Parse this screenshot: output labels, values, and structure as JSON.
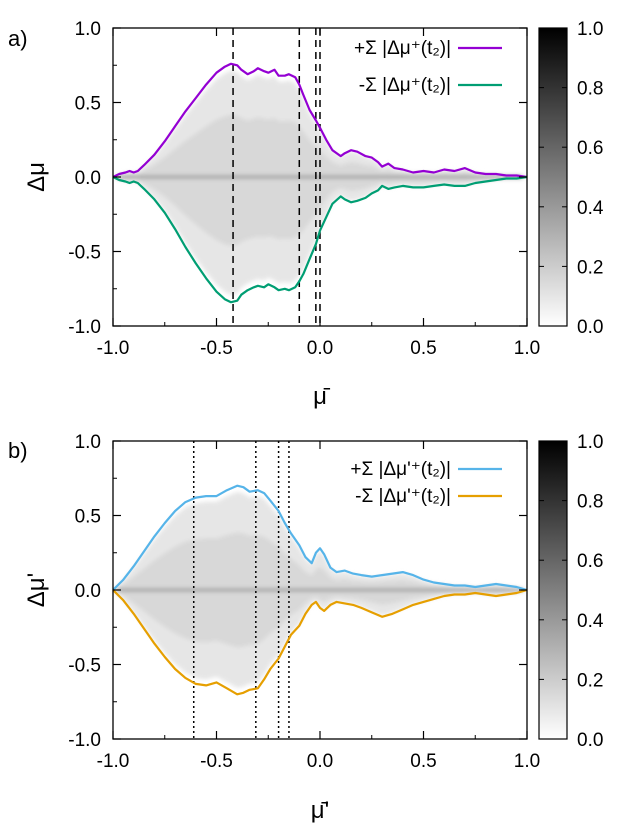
{
  "chart_data": [
    {
      "type": "heatmap",
      "panel_label": "a)",
      "xlabel": "μ̄",
      "ylabel": "Δμ",
      "xlim": [
        -1.0,
        1.0
      ],
      "ylim": [
        -1.0,
        1.0
      ],
      "xticks": [
        "-1.0",
        "-0.5",
        "0.0",
        "0.5",
        "1.0"
      ],
      "yticks": [
        "-1.0",
        "-0.5",
        "0.0",
        "0.5",
        "1.0"
      ],
      "colorbar": {
        "range": [
          0.0,
          1.0
        ],
        "ticks": [
          "0.0",
          "0.2",
          "0.4",
          "0.6",
          "0.8",
          "1.0"
        ],
        "colormap": "white-to-black"
      },
      "legend_position": "top-right",
      "vlines": {
        "style": "dashed",
        "x": [
          -0.42,
          -0.1,
          -0.02,
          0.0
        ]
      },
      "series": [
        {
          "name": "+Σ |Δμ⁺(t₂)|",
          "color": "#9400d3",
          "x": [
            -1.0,
            -0.97,
            -0.94,
            -0.92,
            -0.9,
            -0.88,
            -0.85,
            -0.8,
            -0.75,
            -0.7,
            -0.65,
            -0.6,
            -0.55,
            -0.5,
            -0.46,
            -0.43,
            -0.4,
            -0.38,
            -0.35,
            -0.32,
            -0.3,
            -0.27,
            -0.25,
            -0.22,
            -0.2,
            -0.17,
            -0.15,
            -0.12,
            -0.1,
            -0.08,
            -0.05,
            -0.02,
            0.0,
            0.03,
            0.06,
            0.1,
            0.12,
            0.15,
            0.18,
            0.22,
            0.25,
            0.28,
            0.3,
            0.33,
            0.36,
            0.4,
            0.45,
            0.5,
            0.55,
            0.6,
            0.65,
            0.7,
            0.75,
            0.8,
            0.85,
            0.9,
            0.95,
            1.0
          ],
          "y": [
            0.0,
            0.02,
            0.03,
            0.04,
            0.03,
            0.04,
            0.08,
            0.15,
            0.24,
            0.34,
            0.44,
            0.53,
            0.62,
            0.7,
            0.74,
            0.76,
            0.75,
            0.72,
            0.69,
            0.71,
            0.73,
            0.71,
            0.7,
            0.72,
            0.68,
            0.68,
            0.69,
            0.67,
            0.62,
            0.55,
            0.45,
            0.38,
            0.33,
            0.25,
            0.18,
            0.14,
            0.16,
            0.18,
            0.17,
            0.14,
            0.13,
            0.1,
            0.07,
            0.09,
            0.06,
            0.05,
            0.03,
            0.04,
            0.03,
            0.05,
            0.04,
            0.06,
            0.03,
            0.02,
            0.02,
            0.01,
            0.01,
            0.0
          ]
        },
        {
          "name": "-Σ |Δμ⁺(t₂)|",
          "color": "#009e73",
          "x": [
            -1.0,
            -0.97,
            -0.94,
            -0.92,
            -0.9,
            -0.88,
            -0.85,
            -0.8,
            -0.75,
            -0.7,
            -0.65,
            -0.6,
            -0.55,
            -0.5,
            -0.46,
            -0.43,
            -0.4,
            -0.38,
            -0.35,
            -0.32,
            -0.3,
            -0.27,
            -0.25,
            -0.22,
            -0.2,
            -0.17,
            -0.15,
            -0.12,
            -0.1,
            -0.08,
            -0.05,
            -0.02,
            0.0,
            0.03,
            0.06,
            0.1,
            0.12,
            0.15,
            0.18,
            0.22,
            0.25,
            0.28,
            0.3,
            0.33,
            0.36,
            0.4,
            0.45,
            0.5,
            0.55,
            0.6,
            0.65,
            0.7,
            0.75,
            0.8,
            0.85,
            0.9,
            0.95,
            1.0
          ],
          "y": [
            0.0,
            -0.02,
            -0.03,
            -0.04,
            -0.03,
            -0.04,
            -0.08,
            -0.15,
            -0.24,
            -0.35,
            -0.47,
            -0.58,
            -0.68,
            -0.77,
            -0.82,
            -0.84,
            -0.83,
            -0.79,
            -0.76,
            -0.74,
            -0.73,
            -0.74,
            -0.72,
            -0.74,
            -0.76,
            -0.75,
            -0.76,
            -0.74,
            -0.7,
            -0.65,
            -0.55,
            -0.45,
            -0.36,
            -0.27,
            -0.18,
            -0.13,
            -0.15,
            -0.17,
            -0.16,
            -0.14,
            -0.11,
            -0.09,
            -0.06,
            -0.08,
            -0.07,
            -0.06,
            -0.07,
            -0.07,
            -0.06,
            -0.05,
            -0.06,
            -0.06,
            -0.04,
            -0.03,
            -0.02,
            -0.01,
            -0.01,
            0.0
          ]
        }
      ]
    },
    {
      "type": "heatmap",
      "panel_label": "b)",
      "xlabel": "μ̄'",
      "ylabel": "Δμ'",
      "xlim": [
        -1.0,
        1.0
      ],
      "ylim": [
        -1.0,
        1.0
      ],
      "xticks": [
        "-1.0",
        "-0.5",
        "0.0",
        "0.5",
        "1.0"
      ],
      "yticks": [
        "-1.0",
        "-0.5",
        "0.0",
        "0.5",
        "1.0"
      ],
      "colorbar": {
        "range": [
          0.0,
          1.0
        ],
        "ticks": [
          "0.0",
          "0.2",
          "0.4",
          "0.6",
          "0.8",
          "1.0"
        ],
        "colormap": "white-to-black"
      },
      "legend_position": "top-right",
      "vlines": {
        "style": "dotted",
        "x": [
          -0.61,
          -0.31,
          -0.2,
          -0.15
        ]
      },
      "series": [
        {
          "name": "+Σ |Δμ'⁺(t₂)|",
          "color": "#56b4e9",
          "x": [
            -1.0,
            -0.95,
            -0.9,
            -0.85,
            -0.8,
            -0.75,
            -0.7,
            -0.65,
            -0.6,
            -0.55,
            -0.5,
            -0.45,
            -0.4,
            -0.37,
            -0.34,
            -0.3,
            -0.27,
            -0.24,
            -0.2,
            -0.17,
            -0.14,
            -0.1,
            -0.07,
            -0.04,
            -0.02,
            0.0,
            0.02,
            0.05,
            0.08,
            0.12,
            0.16,
            0.2,
            0.25,
            0.3,
            0.35,
            0.4,
            0.45,
            0.5,
            0.55,
            0.6,
            0.65,
            0.7,
            0.75,
            0.8,
            0.85,
            0.9,
            0.95,
            1.0
          ],
          "y": [
            0.0,
            0.07,
            0.16,
            0.26,
            0.36,
            0.45,
            0.53,
            0.59,
            0.62,
            0.63,
            0.63,
            0.67,
            0.7,
            0.69,
            0.66,
            0.67,
            0.65,
            0.6,
            0.53,
            0.45,
            0.38,
            0.3,
            0.22,
            0.18,
            0.25,
            0.28,
            0.24,
            0.15,
            0.12,
            0.13,
            0.11,
            0.1,
            0.09,
            0.1,
            0.11,
            0.12,
            0.1,
            0.07,
            0.05,
            0.04,
            0.03,
            0.03,
            0.02,
            0.03,
            0.04,
            0.03,
            0.02,
            0.0
          ]
        },
        {
          "name": "-Σ |Δμ'⁺(t₂)|",
          "color": "#e69f00",
          "x": [
            -1.0,
            -0.95,
            -0.9,
            -0.85,
            -0.8,
            -0.75,
            -0.7,
            -0.65,
            -0.6,
            -0.55,
            -0.5,
            -0.45,
            -0.4,
            -0.37,
            -0.34,
            -0.3,
            -0.27,
            -0.24,
            -0.2,
            -0.17,
            -0.14,
            -0.1,
            -0.07,
            -0.04,
            -0.02,
            0.0,
            0.02,
            0.05,
            0.08,
            0.12,
            0.16,
            0.2,
            0.25,
            0.3,
            0.35,
            0.4,
            0.45,
            0.5,
            0.55,
            0.6,
            0.65,
            0.7,
            0.75,
            0.8,
            0.85,
            0.9,
            0.95,
            1.0
          ],
          "y": [
            0.0,
            -0.07,
            -0.16,
            -0.26,
            -0.36,
            -0.45,
            -0.53,
            -0.59,
            -0.63,
            -0.64,
            -0.62,
            -0.66,
            -0.7,
            -0.69,
            -0.67,
            -0.66,
            -0.6,
            -0.53,
            -0.46,
            -0.38,
            -0.3,
            -0.24,
            -0.16,
            -0.1,
            -0.08,
            -0.12,
            -0.14,
            -0.1,
            -0.08,
            -0.09,
            -0.1,
            -0.12,
            -0.15,
            -0.18,
            -0.16,
            -0.13,
            -0.1,
            -0.08,
            -0.06,
            -0.04,
            -0.03,
            -0.03,
            -0.02,
            -0.03,
            -0.04,
            -0.03,
            -0.02,
            0.0
          ]
        }
      ]
    }
  ]
}
